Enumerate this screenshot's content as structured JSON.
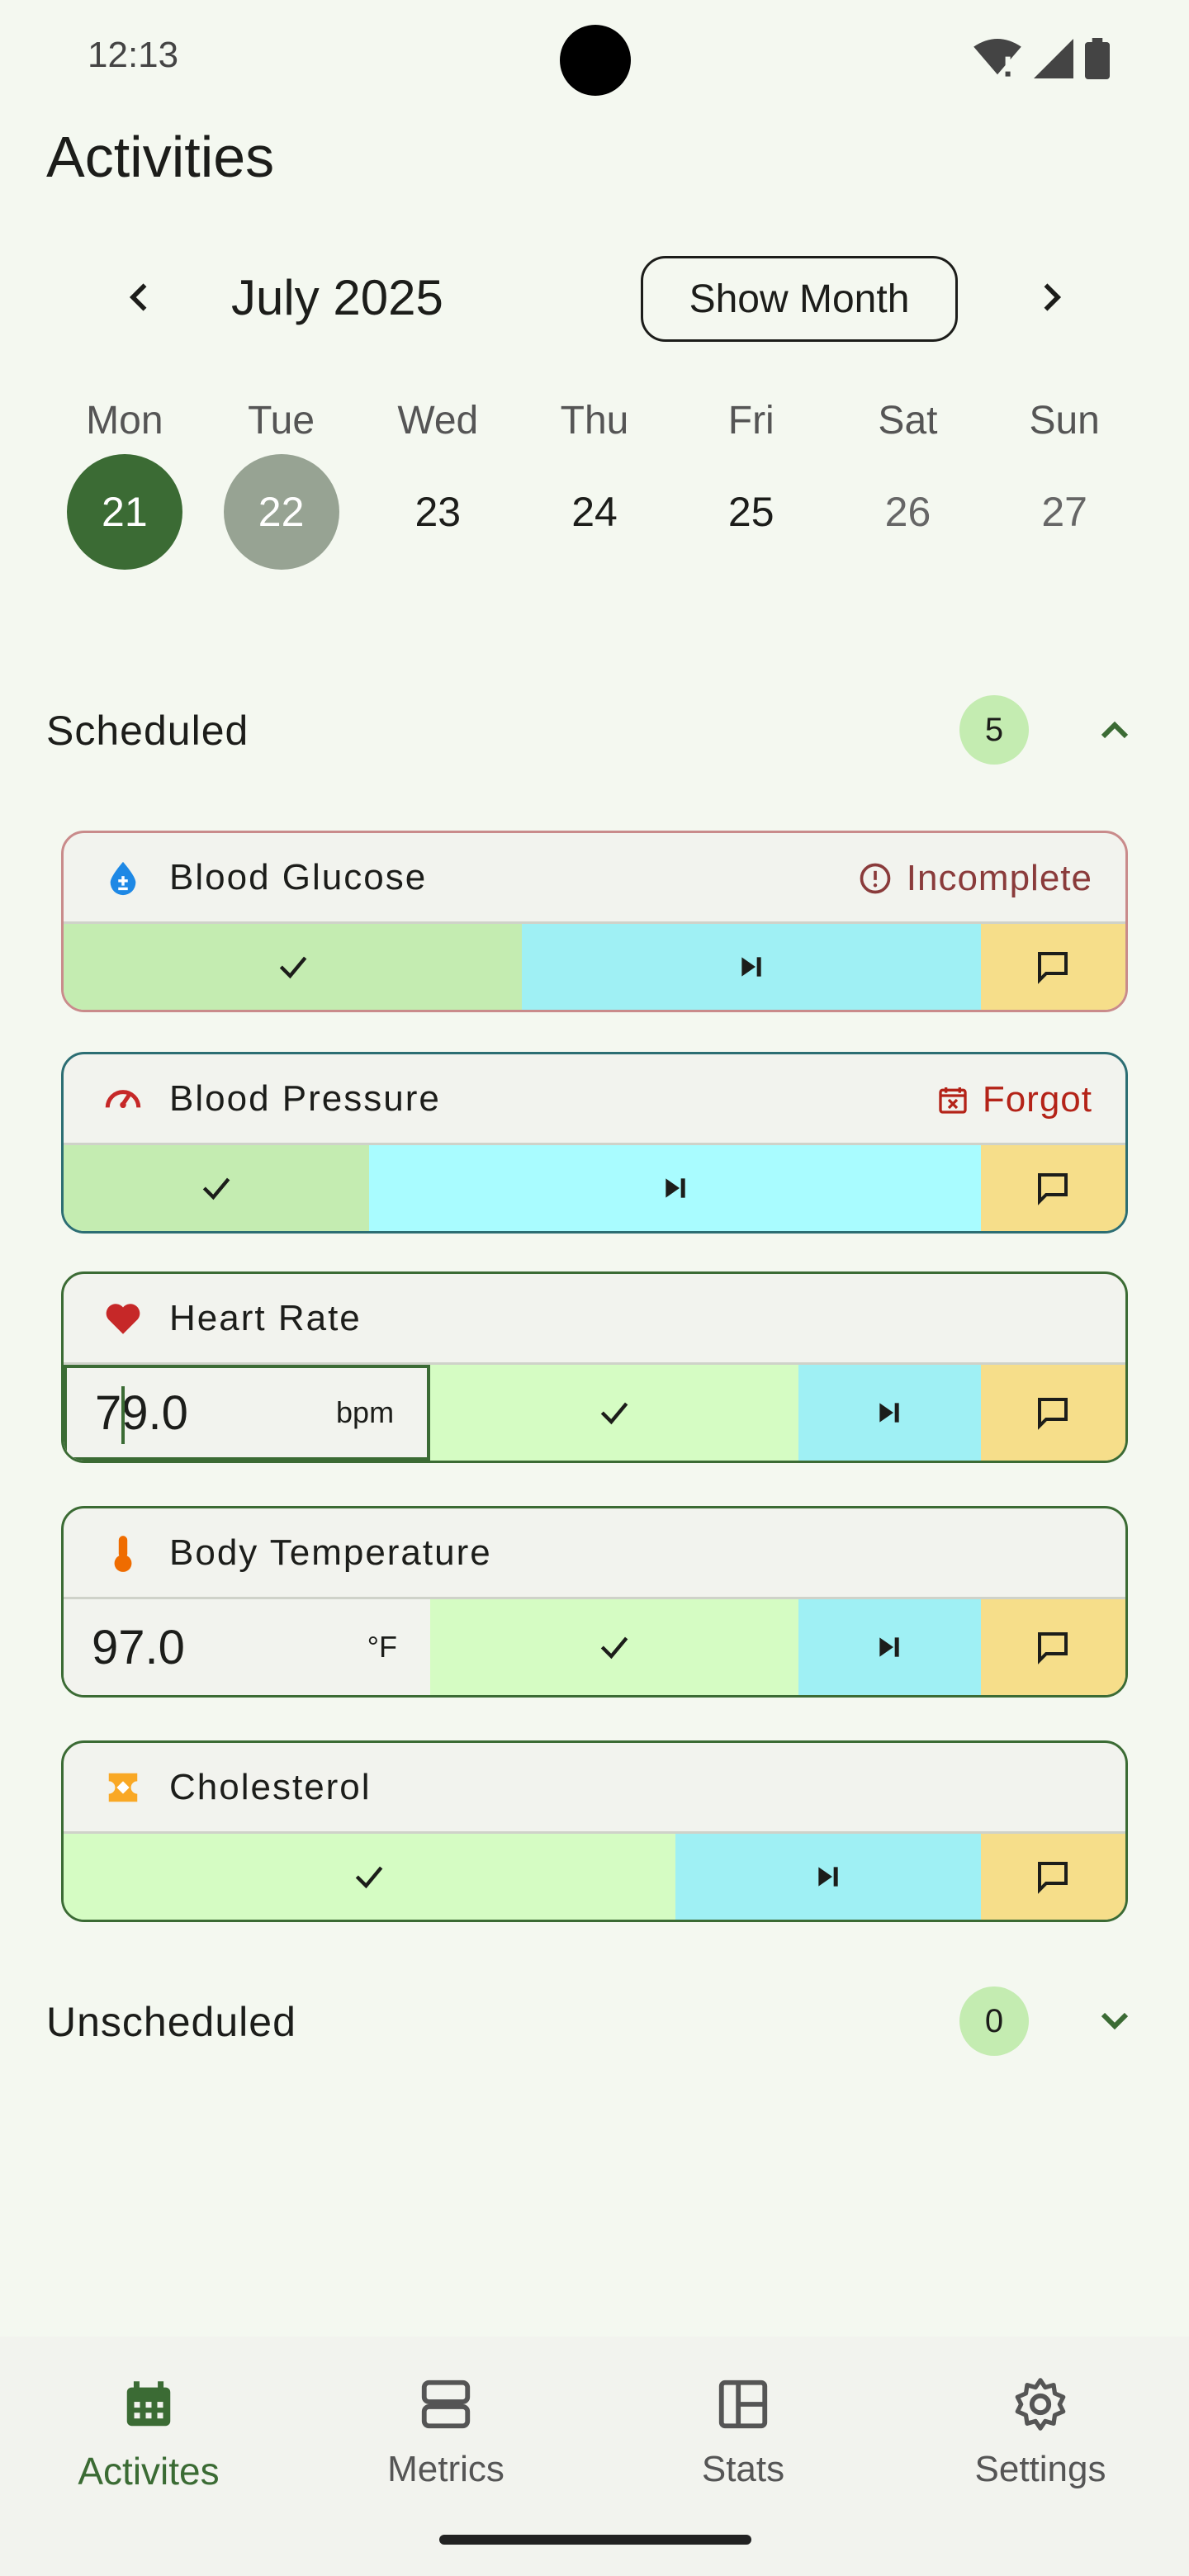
{
  "status_bar": {
    "time": "12:13"
  },
  "page": {
    "title": "Activities"
  },
  "month_nav": {
    "month_label": "July 2025",
    "show_month_label": "Show Month"
  },
  "week": [
    {
      "name": "Mon",
      "num": "21",
      "state": "selected"
    },
    {
      "name": "Tue",
      "num": "22",
      "state": "today"
    },
    {
      "name": "Wed",
      "num": "23",
      "state": "normal"
    },
    {
      "name": "Thu",
      "num": "24",
      "state": "normal"
    },
    {
      "name": "Fri",
      "num": "25",
      "state": "normal"
    },
    {
      "name": "Sat",
      "num": "26",
      "state": "weekend"
    },
    {
      "name": "Sun",
      "num": "27",
      "state": "weekend"
    }
  ],
  "scheduled": {
    "title": "Scheduled",
    "count": "5"
  },
  "unscheduled": {
    "title": "Unscheduled",
    "count": "0"
  },
  "cards": [
    {
      "title": "Blood Glucose",
      "icon": "blood-drop-icon",
      "status": "Incomplete",
      "status_icon": "alert-circle-icon",
      "status_color": "#8a3b3b"
    },
    {
      "title": "Blood Pressure",
      "icon": "gauge-icon",
      "status": "Forgot",
      "status_icon": "calendar-x-icon",
      "status_color": "#b42318"
    },
    {
      "title": "Heart Rate",
      "icon": "heart-icon",
      "value": "79.0",
      "unit": "bpm"
    },
    {
      "title": "Body Temperature",
      "icon": "thermometer-icon",
      "value": "97.0",
      "unit": "°F"
    },
    {
      "title": "Cholesterol",
      "icon": "cholesterol-icon"
    }
  ],
  "bottom_nav": [
    {
      "label": "Activites",
      "icon": "calendar-icon",
      "active": true
    },
    {
      "label": "Metrics",
      "icon": "metrics-icon",
      "active": false
    },
    {
      "label": "Stats",
      "icon": "stats-icon",
      "active": false
    },
    {
      "label": "Settings",
      "icon": "gear-icon",
      "active": false
    }
  ],
  "colors": {
    "accent": "#3b6b34",
    "done": "#c4ecb1",
    "skip": "#9ff0f4",
    "note": "#f6de8a",
    "background": "#f4f8f0"
  }
}
